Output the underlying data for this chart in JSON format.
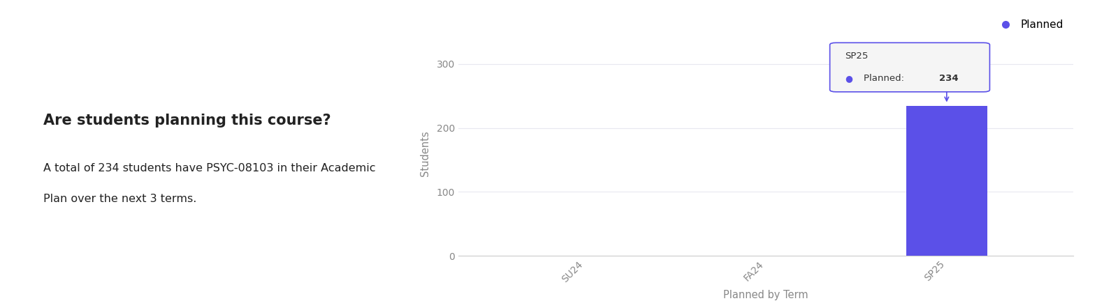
{
  "title": "Are students planning this course?",
  "subtitle_line1": "A total of 234 students have PSYC-08103 in their Academic",
  "subtitle_line2": "Plan over the next 3 terms.",
  "categories": [
    "SU24",
    "FA24",
    "SP25"
  ],
  "values": [
    0,
    0,
    234
  ],
  "bar_color": "#5B50E8",
  "legend_label": "Planned",
  "legend_color": "#5B50E8",
  "xlabel": "Planned by Term",
  "ylabel": "Students",
  "ylim": [
    0,
    320
  ],
  "yticks": [
    0,
    100,
    200,
    300
  ],
  "tooltip_term": "SP25",
  "tooltip_value": 234,
  "tooltip_label": "Planned",
  "background_color": "#ffffff",
  "grid_color": "#e8e8f0",
  "text_color": "#222222",
  "axis_color": "#cccccc",
  "tick_color": "#888888"
}
